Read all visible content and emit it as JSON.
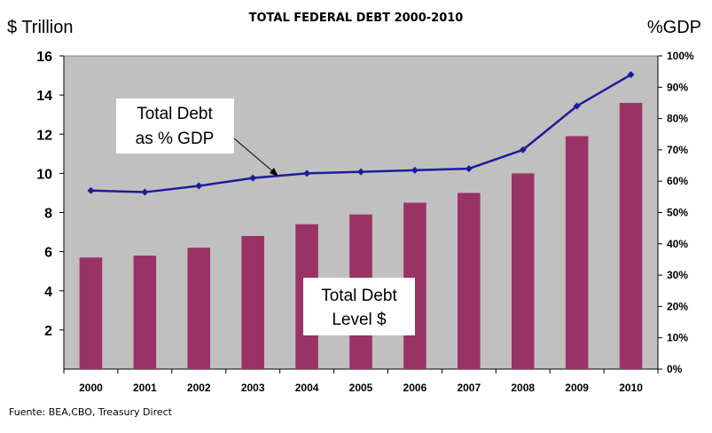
{
  "chart_data": {
    "type": "bar",
    "title": "TOTAL FEDERAL DEBT 2000-2010",
    "ylabel_left": "$ Trillion",
    "ylabel_right": "%GDP",
    "source": "Fuente: BEA,CBO, Treasury Direct",
    "categories": [
      "2000",
      "2001",
      "2002",
      "2003",
      "2004",
      "2005",
      "2006",
      "2007",
      "2008",
      "2009",
      "2010"
    ],
    "series": [
      {
        "name": "Total Debt Level $",
        "axis": "left",
        "type": "bar",
        "color": "#993366",
        "values": [
          5.7,
          5.8,
          6.2,
          6.8,
          7.4,
          7.9,
          8.5,
          9.0,
          10.0,
          11.9,
          13.6
        ]
      },
      {
        "name": "Total Debt as % GDP",
        "axis": "right",
        "type": "line",
        "color": "#1c1c99",
        "values": [
          57,
          56.5,
          58.5,
          61,
          62.5,
          63,
          63.5,
          64,
          70,
          84,
          94
        ]
      }
    ],
    "y_left": {
      "min": 0,
      "max": 16,
      "ticks": [
        "2",
        "4",
        "6",
        "8",
        "10",
        "12",
        "14",
        "16"
      ]
    },
    "y_right": {
      "min": 0,
      "max": 100,
      "ticks": [
        "0%",
        "10%",
        "20%",
        "30%",
        "40%",
        "50%",
        "60%",
        "70%",
        "80%",
        "90%",
        "100%"
      ]
    },
    "annotations": {
      "line_label": [
        "Total Debt",
        "as % GDP"
      ],
      "bar_label": [
        "Total Debt",
        "Level $"
      ]
    },
    "plot_background": "#c0c0c0",
    "grid": false
  }
}
